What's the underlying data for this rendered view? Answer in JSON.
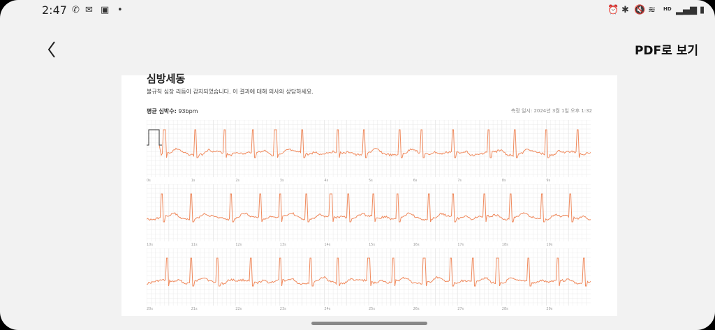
{
  "status_bar": {
    "time": "2:47",
    "left_icons": [
      "missed-call-icon",
      "mail-icon",
      "gallery-icon",
      "dot-icon"
    ],
    "right_icons": [
      "alarm-icon",
      "bluetooth-icon",
      "mute-icon",
      "wifi-icon",
      "hd-icon",
      "signal-icon",
      "battery-icon"
    ]
  },
  "header": {
    "back_icon": "chevron-left-icon",
    "pdf_button_label": "PDF로 보기"
  },
  "document": {
    "title": "심방세동",
    "description": "불규칙 심장 리듬이 감지되었습니다. 이 결과에 대해 의사와 상담하세요.",
    "avg_label": "평균 심박수:",
    "avg_value": "93bpm",
    "measured": "측정 일시: 2024년 3월 1일 오후 1:32"
  },
  "strips": [
    {
      "ticks": [
        "0s",
        "1s",
        "2s",
        "3s",
        "4s",
        "5s",
        "6s",
        "7s",
        "8s",
        "9s"
      ],
      "beats": [
        0.04,
        0.11,
        0.175,
        0.24,
        0.29,
        0.35,
        0.43,
        0.49,
        0.57,
        0.62,
        0.69,
        0.77,
        0.83,
        0.9,
        0.97
      ]
    },
    {
      "ticks": [
        "10s",
        "11s",
        "12s",
        "13s",
        "14s",
        "15s",
        "16s",
        "17s",
        "18s",
        "19s"
      ],
      "beats": [
        0.035,
        0.1,
        0.19,
        0.255,
        0.3,
        0.36,
        0.415,
        0.455,
        0.51,
        0.565,
        0.635,
        0.69,
        0.76,
        0.82,
        0.89,
        0.955
      ]
    },
    {
      "ticks": [
        "20s",
        "21s",
        "22s",
        "23s",
        "24s",
        "25s",
        "26s",
        "27s",
        "28s",
        "29s"
      ],
      "beats": [
        0.045,
        0.1,
        0.16,
        0.235,
        0.3,
        0.37,
        0.43,
        0.5,
        0.555,
        0.625,
        0.685,
        0.735,
        0.79,
        0.86,
        0.925,
        0.985
      ]
    }
  ],
  "colors": {
    "ecg": "#f08a5d",
    "grid": "#e6e6e6"
  }
}
